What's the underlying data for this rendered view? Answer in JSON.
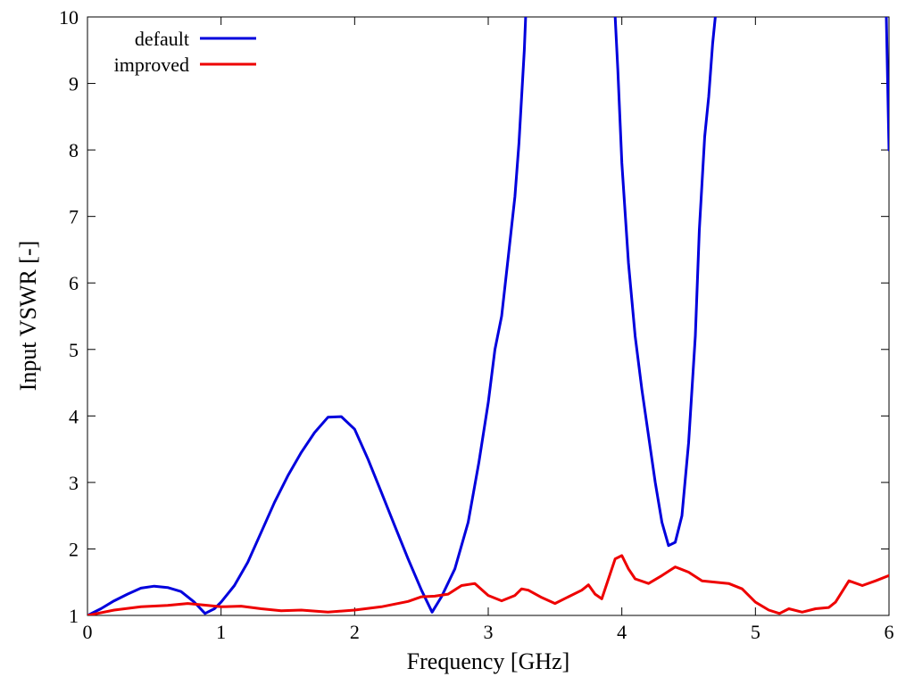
{
  "chart_data": {
    "type": "line",
    "xlabel": "Frequency [GHz]",
    "ylabel": "Input VSWR [-]",
    "xlim": [
      0,
      6
    ],
    "ylim": [
      1,
      10
    ],
    "xticks": [
      0,
      1,
      2,
      3,
      4,
      5,
      6
    ],
    "yticks": [
      1,
      2,
      3,
      4,
      5,
      6,
      7,
      8,
      9,
      10
    ],
    "grid": false,
    "legend_position": "top-left",
    "series": [
      {
        "name": "default",
        "color": "#0000dd",
        "points": [
          [
            0,
            1.0
          ],
          [
            0.1,
            1.1
          ],
          [
            0.2,
            1.22
          ],
          [
            0.3,
            1.32
          ],
          [
            0.4,
            1.41
          ],
          [
            0.5,
            1.44
          ],
          [
            0.6,
            1.42
          ],
          [
            0.7,
            1.36
          ],
          [
            0.8,
            1.2
          ],
          [
            0.88,
            1.03
          ],
          [
            0.95,
            1.1
          ],
          [
            1.0,
            1.2
          ],
          [
            1.1,
            1.45
          ],
          [
            1.2,
            1.8
          ],
          [
            1.3,
            2.25
          ],
          [
            1.4,
            2.7
          ],
          [
            1.5,
            3.1
          ],
          [
            1.6,
            3.45
          ],
          [
            1.7,
            3.75
          ],
          [
            1.8,
            3.98
          ],
          [
            1.9,
            3.99
          ],
          [
            2.0,
            3.8
          ],
          [
            2.1,
            3.35
          ],
          [
            2.2,
            2.85
          ],
          [
            2.3,
            2.35
          ],
          [
            2.4,
            1.85
          ],
          [
            2.5,
            1.38
          ],
          [
            2.58,
            1.05
          ],
          [
            2.65,
            1.28
          ],
          [
            2.75,
            1.7
          ],
          [
            2.85,
            2.4
          ],
          [
            2.93,
            3.3
          ],
          [
            3.0,
            4.2
          ],
          [
            3.05,
            5.0
          ],
          [
            3.1,
            5.5
          ],
          [
            3.15,
            6.4
          ],
          [
            3.2,
            7.3
          ],
          [
            3.23,
            8.1
          ],
          [
            3.25,
            8.8
          ],
          [
            3.27,
            9.5
          ],
          [
            3.28,
            10.0
          ],
          null,
          [
            3.95,
            10.0
          ],
          [
            3.97,
            9.2
          ],
          [
            4.0,
            7.8
          ],
          [
            4.05,
            6.3
          ],
          [
            4.1,
            5.2
          ],
          [
            4.15,
            4.4
          ],
          [
            4.2,
            3.7
          ],
          [
            4.25,
            3.0
          ],
          [
            4.3,
            2.4
          ],
          [
            4.35,
            2.05
          ],
          [
            4.4,
            2.1
          ],
          [
            4.45,
            2.5
          ],
          [
            4.5,
            3.6
          ],
          [
            4.55,
            5.2
          ],
          [
            4.58,
            6.8
          ],
          [
            4.62,
            8.2
          ],
          [
            4.65,
            8.8
          ],
          [
            4.68,
            9.6
          ],
          [
            4.7,
            10.0
          ],
          null,
          [
            5.98,
            10.0
          ],
          [
            5.99,
            9.0
          ],
          [
            6.0,
            8.0
          ]
        ]
      },
      {
        "name": "improved",
        "color": "#ee0000",
        "points": [
          [
            0,
            1.0
          ],
          [
            0.2,
            1.08
          ],
          [
            0.4,
            1.13
          ],
          [
            0.6,
            1.15
          ],
          [
            0.75,
            1.18
          ],
          [
            0.9,
            1.15
          ],
          [
            1.0,
            1.13
          ],
          [
            1.15,
            1.14
          ],
          [
            1.3,
            1.1
          ],
          [
            1.45,
            1.07
          ],
          [
            1.6,
            1.08
          ],
          [
            1.8,
            1.05
          ],
          [
            2.0,
            1.08
          ],
          [
            2.2,
            1.13
          ],
          [
            2.4,
            1.21
          ],
          [
            2.5,
            1.28
          ],
          [
            2.6,
            1.29
          ],
          [
            2.7,
            1.32
          ],
          [
            2.8,
            1.45
          ],
          [
            2.9,
            1.48
          ],
          [
            3.0,
            1.3
          ],
          [
            3.1,
            1.22
          ],
          [
            3.2,
            1.3
          ],
          [
            3.25,
            1.4
          ],
          [
            3.3,
            1.38
          ],
          [
            3.4,
            1.27
          ],
          [
            3.5,
            1.18
          ],
          [
            3.6,
            1.28
          ],
          [
            3.7,
            1.38
          ],
          [
            3.75,
            1.46
          ],
          [
            3.8,
            1.32
          ],
          [
            3.85,
            1.25
          ],
          [
            3.9,
            1.55
          ],
          [
            3.95,
            1.85
          ],
          [
            4.0,
            1.9
          ],
          [
            4.05,
            1.7
          ],
          [
            4.1,
            1.55
          ],
          [
            4.2,
            1.48
          ],
          [
            4.3,
            1.6
          ],
          [
            4.4,
            1.73
          ],
          [
            4.5,
            1.65
          ],
          [
            4.6,
            1.52
          ],
          [
            4.7,
            1.5
          ],
          [
            4.8,
            1.48
          ],
          [
            4.9,
            1.4
          ],
          [
            5.0,
            1.2
          ],
          [
            5.1,
            1.08
          ],
          [
            5.18,
            1.03
          ],
          [
            5.25,
            1.1
          ],
          [
            5.35,
            1.05
          ],
          [
            5.45,
            1.1
          ],
          [
            5.55,
            1.12
          ],
          [
            5.6,
            1.2
          ],
          [
            5.7,
            1.52
          ],
          [
            5.8,
            1.45
          ],
          [
            5.9,
            1.52
          ],
          [
            6.0,
            1.6
          ]
        ]
      }
    ]
  }
}
